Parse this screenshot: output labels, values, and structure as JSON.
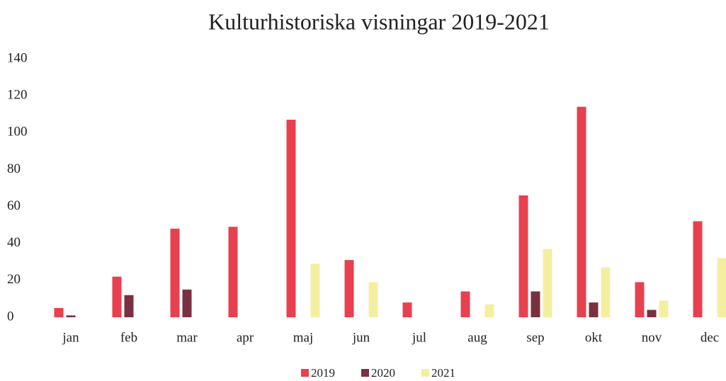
{
  "chart_data": {
    "type": "bar",
    "title": "Kulturhistoriska visningar 2019-2021",
    "categories": [
      "jan",
      "feb",
      "mar",
      "apr",
      "maj",
      "jun",
      "jul",
      "aug",
      "sep",
      "okt",
      "nov",
      "dec"
    ],
    "series": [
      {
        "name": "2019",
        "color": "#e8404f",
        "values": [
          5,
          22,
          48,
          49,
          107,
          31,
          8,
          14,
          66,
          114,
          19,
          52
        ]
      },
      {
        "name": "2020",
        "color": "#7a3040",
        "values": [
          1,
          12,
          15,
          0,
          0,
          0,
          0,
          0,
          14,
          8,
          4,
          0
        ]
      },
      {
        "name": "2021",
        "color": "#f4efa0",
        "values": [
          0,
          0,
          0,
          0,
          29,
          19,
          0,
          7,
          37,
          27,
          9,
          32
        ]
      }
    ],
    "ylim": [
      0,
      140
    ],
    "yticks": [
      0,
      20,
      40,
      60,
      80,
      100,
      120,
      140
    ],
    "grid": false,
    "legend": "bottom"
  }
}
